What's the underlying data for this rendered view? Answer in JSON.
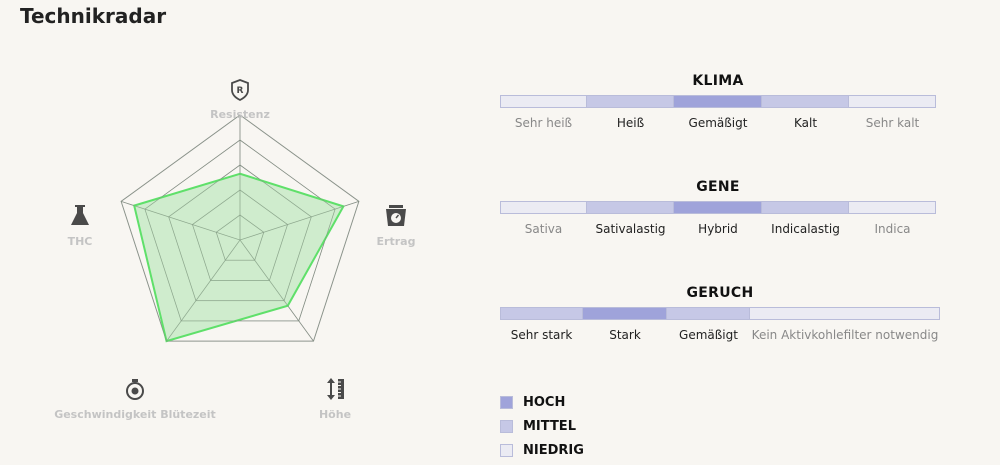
{
  "page": {
    "title": "Technikradar"
  },
  "radar": {
    "axes": [
      {
        "label": "Resistenz",
        "icon": "shield-r-icon",
        "value": 0.53
      },
      {
        "label": "Ertrag",
        "icon": "scale-icon",
        "value": 0.87
      },
      {
        "label": "Höhe",
        "icon": "height-ruler-icon",
        "value": 0.65
      },
      {
        "label": "Geschwindigkeit Blütezeit",
        "icon": "stopwatch-icon",
        "value": 1.0
      },
      {
        "label": "THC",
        "icon": "flask-icon",
        "value": 0.89
      }
    ],
    "rings": 5,
    "max": 1,
    "fill_color": "#b8e6b8",
    "stroke_color": "#5fe06a"
  },
  "scales": [
    {
      "title": "KLIMA",
      "segments": [
        {
          "label": "Sehr heiß",
          "level": "low"
        },
        {
          "label": "Heiß",
          "level": "mid"
        },
        {
          "label": "Gemäßigt",
          "level": "high"
        },
        {
          "label": "Kalt",
          "level": "mid"
        },
        {
          "label": "Sehr kalt",
          "level": "low"
        }
      ]
    },
    {
      "title": "GENE",
      "segments": [
        {
          "label": "Sativa",
          "level": "low"
        },
        {
          "label": "Sativalastig",
          "level": "mid"
        },
        {
          "label": "Hybrid",
          "level": "high"
        },
        {
          "label": "Indicalastig",
          "level": "mid"
        },
        {
          "label": "Indica",
          "level": "low"
        }
      ]
    },
    {
      "title": "GERUCH",
      "segments": [
        {
          "label": "Sehr stark",
          "level": "mid"
        },
        {
          "label": "Stark",
          "level": "high"
        },
        {
          "label": "Gemäßigt",
          "level": "mid"
        },
        {
          "label": "Kein Aktivkohlefilter notwendig",
          "level": "low"
        }
      ]
    }
  ],
  "legend": [
    {
      "label": "HOCH",
      "level": "high"
    },
    {
      "label": "MITTEL",
      "level": "mid"
    },
    {
      "label": "NIEDRIG",
      "level": "low"
    }
  ],
  "colors": {
    "high": "#9fa3da",
    "mid": "#c6c8e6",
    "low": "#ebebf3",
    "background": "#f8f6f2"
  }
}
